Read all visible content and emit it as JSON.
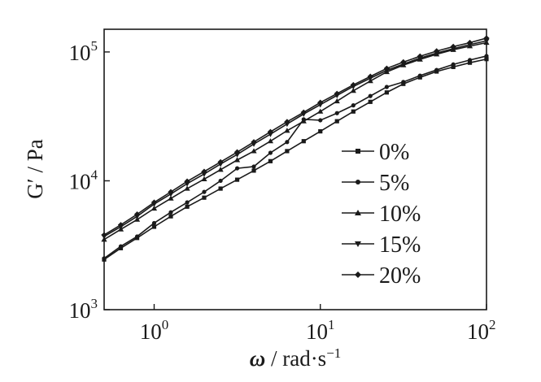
{
  "chart_data": {
    "type": "line",
    "xlabel_symbol": "ω",
    "xlabel_unit": " / rad·s",
    "xlabel_sup": "−1",
    "ylabel": "G′  / Pa",
    "x_scale": "log",
    "y_scale": "log",
    "xlim": [
      0.5,
      100
    ],
    "ylim": [
      1000,
      150000
    ],
    "x_ticks": [
      {
        "value": 1,
        "base": "10",
        "exp": "0"
      },
      {
        "value": 10,
        "base": "10",
        "exp": "1"
      },
      {
        "value": 100,
        "base": "10",
        "exp": "2"
      }
    ],
    "y_ticks": [
      {
        "value": 1000,
        "base": "10",
        "exp": "3"
      },
      {
        "value": 10000,
        "base": "10",
        "exp": "4"
      },
      {
        "value": 100000,
        "base": "10",
        "exp": "5"
      }
    ],
    "grid": false,
    "legend_position": "center-right",
    "colors": {
      "ink": "#1a1a1a"
    },
    "x": [
      0.5,
      0.63,
      0.79,
      1.0,
      1.26,
      1.58,
      2.0,
      2.51,
      3.16,
      3.98,
      5.01,
      6.31,
      7.94,
      10.0,
      12.6,
      15.8,
      20.0,
      25.1,
      31.6,
      39.8,
      50.1,
      63.1,
      79.4,
      100.0
    ],
    "series": [
      {
        "name": "0%",
        "marker": "square",
        "values": [
          2450,
          3000,
          3600,
          4400,
          5300,
          6300,
          7400,
          8700,
          10200,
          12000,
          14200,
          17000,
          20300,
          24200,
          29000,
          34500,
          41000,
          48500,
          56500,
          63500,
          70500,
          76500,
          82500,
          88000
        ]
      },
      {
        "name": "5%",
        "marker": "circle",
        "values": [
          2500,
          3100,
          3700,
          4700,
          5700,
          6800,
          8200,
          10000,
          12500,
          12900,
          16500,
          20000,
          30000,
          29500,
          33500,
          38500,
          45500,
          53500,
          58500,
          65500,
          72500,
          80000,
          86500,
          93000
        ]
      },
      {
        "name": "10%",
        "marker": "triangle-up",
        "values": [
          3500,
          4200,
          5000,
          6100,
          7300,
          8700,
          10300,
          12200,
          14500,
          17000,
          20300,
          24500,
          29000,
          34500,
          41500,
          50000,
          59500,
          70000,
          79000,
          87500,
          96000,
          104000,
          111000,
          118000
        ]
      },
      {
        "name": "15%",
        "marker": "triangle-down",
        "values": [
          3700,
          4400,
          5300,
          6600,
          7900,
          9500,
          11300,
          13500,
          16000,
          19300,
          23000,
          27600,
          33000,
          39000,
          46000,
          54000,
          62500,
          72000,
          80500,
          89500,
          98000,
          106000,
          114000,
          122000
        ]
      },
      {
        "name": "20%",
        "marker": "diamond",
        "values": [
          3800,
          4550,
          5500,
          6800,
          8200,
          9900,
          11800,
          14000,
          16700,
          20000,
          24000,
          28700,
          34000,
          40500,
          47500,
          55500,
          64500,
          74500,
          83500,
          92500,
          101500,
          110000,
          118000,
          128000
        ]
      }
    ]
  }
}
